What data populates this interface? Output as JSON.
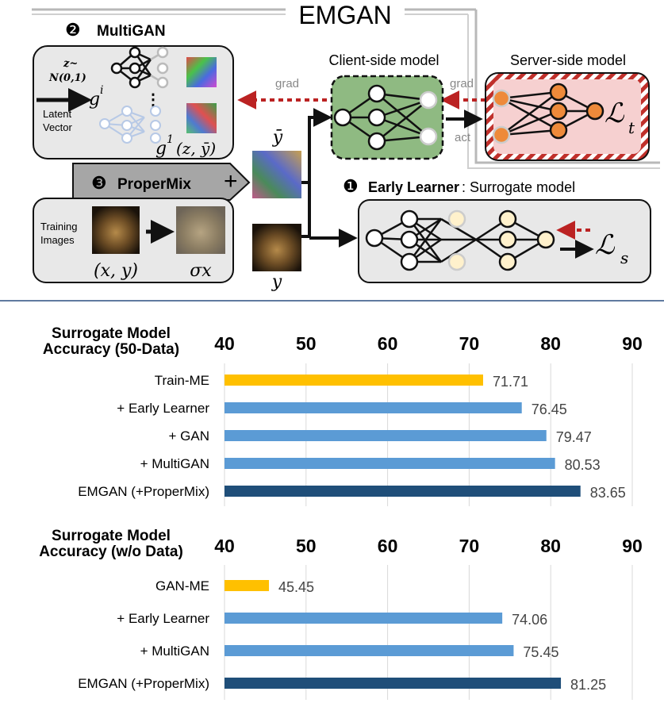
{
  "diagram": {
    "title": "EMGAN",
    "multigan": {
      "marker": "❷",
      "label": "MultiGAN",
      "z_line1": "z~",
      "z_line2": "N(0,1)",
      "gi": "g",
      "gi_sup": "i",
      "latent1": "Latent",
      "latent2": "Vector",
      "g1": "g",
      "g1_sup": "1",
      "g1_args": "(z, ȳ)",
      "dots": "⋮"
    },
    "propermix": {
      "marker": "❸",
      "label": "ProperMix",
      "plus": "+"
    },
    "training": {
      "label1": "Training",
      "label2": "Images",
      "xy": "(x, y)",
      "sigmax": "σx"
    },
    "client": {
      "label": "Client-side model"
    },
    "server": {
      "label": "Server-side model",
      "loss": "ℒ",
      "loss_sub": "t"
    },
    "grad_left": "grad",
    "grad_right": "grad",
    "act": "act",
    "ybar": "ȳ",
    "y": "y",
    "early": {
      "marker": "❶",
      "label": "Early Learner",
      "rest": ": Surrogate model",
      "loss": "ℒ",
      "loss_sub": "s"
    }
  },
  "chart_data": [
    {
      "type": "bar",
      "orientation": "horizontal",
      "title_line1": "Surrogate Model",
      "title_line2": "Accuracy (50-Data)",
      "xlim": [
        40,
        90
      ],
      "ticks": [
        40,
        50,
        60,
        70,
        80,
        90
      ],
      "grid": true,
      "categories": [
        "Train-ME",
        "+ Early Learner",
        "+ GAN",
        "+ MultiGAN",
        "EMGAN (+ProperMix)"
      ],
      "values": [
        71.71,
        76.45,
        79.47,
        80.53,
        83.65
      ],
      "colors": [
        "#FFC000",
        "#5B9BD5",
        "#5B9BD5",
        "#5B9BD5",
        "#1F4E79"
      ]
    },
    {
      "type": "bar",
      "orientation": "horizontal",
      "title_line1": "Surrogate Model",
      "title_line2": "Accuracy (w/o Data)",
      "xlim": [
        40,
        90
      ],
      "ticks": [
        40,
        50,
        60,
        70,
        80,
        90
      ],
      "grid": true,
      "categories": [
        "GAN-ME",
        "+ Early Learner",
        "+ MultiGAN",
        "EMGAN (+ProperMix)"
      ],
      "values": [
        45.45,
        74.06,
        75.45,
        81.25
      ],
      "colors": [
        "#FFC000",
        "#5B9BD5",
        "#5B9BD5",
        "#1F4E79"
      ]
    }
  ]
}
